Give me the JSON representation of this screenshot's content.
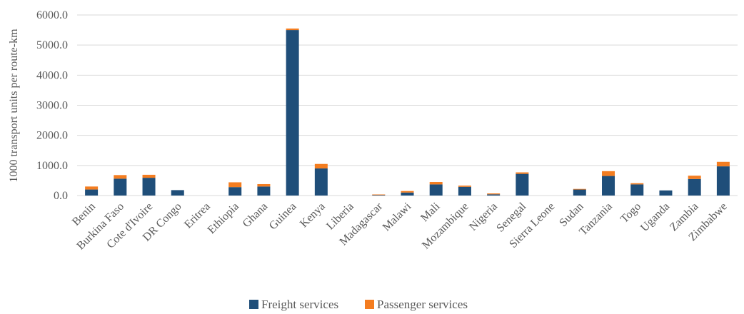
{
  "chart_data": {
    "type": "bar",
    "stacked": true,
    "title": "",
    "xlabel": "",
    "ylabel": "1000 transport units per route-km",
    "ylim": [
      0,
      6000
    ],
    "yticks": [
      "0.0",
      "1000.0",
      "2000.0",
      "3000.0",
      "4000.0",
      "5000.0",
      "6000.0"
    ],
    "grid": true,
    "legend_position": "bottom",
    "categories": [
      "Benin",
      "Burkina Faso",
      "Cote d'Ivoire",
      "DR Congo",
      "Eritrea",
      "Ethiopia",
      "Ghana",
      "Guinea",
      "Kenya",
      "Liberia",
      "Madagascar",
      "Malawi",
      "Mali",
      "Mozambique",
      "Nigeria",
      "Senegal",
      "Sierra Leone",
      "Sudan",
      "Tanzania",
      "Togo",
      "Uganda",
      "Zambia",
      "Zimbabwe"
    ],
    "series": [
      {
        "name": "Freight services",
        "color": "#1f4e79",
        "values": [
          200,
          560,
          590,
          180,
          0,
          280,
          300,
          5500,
          900,
          0,
          30,
          100,
          370,
          290,
          40,
          720,
          0,
          200,
          650,
          370,
          170,
          550,
          970
        ]
      },
      {
        "name": "Passenger services",
        "color": "#f47d20",
        "values": [
          100,
          120,
          100,
          0,
          0,
          160,
          80,
          50,
          150,
          0,
          5,
          50,
          80,
          40,
          30,
          50,
          0,
          20,
          160,
          40,
          0,
          110,
          150
        ]
      }
    ]
  }
}
